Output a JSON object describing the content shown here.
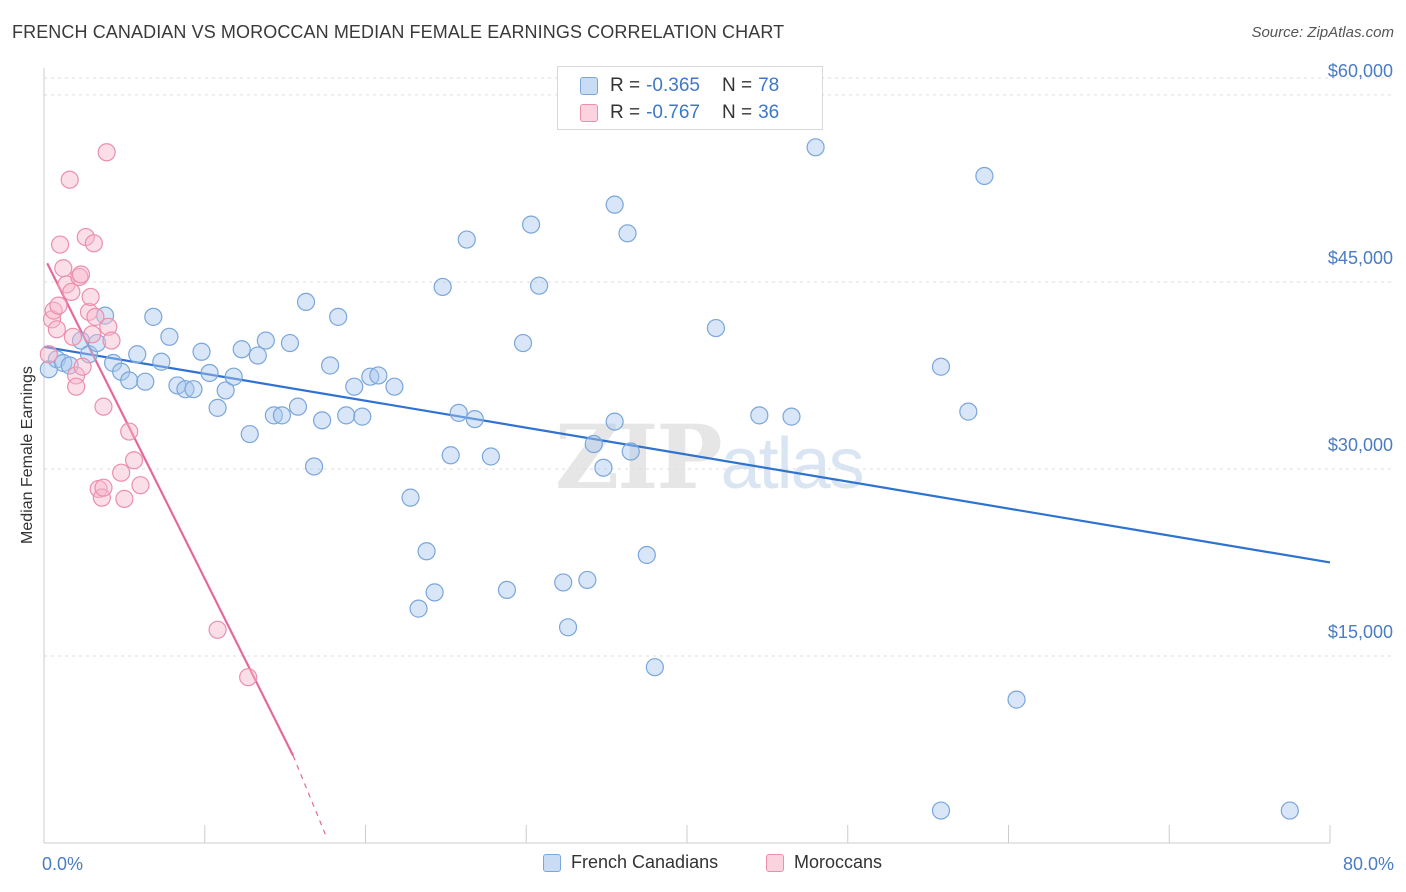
{
  "header": {
    "title": "FRENCH CANADIAN VS MOROCCAN MEDIAN FEMALE EARNINGS CORRELATION CHART",
    "source": "Source: ZipAtlas.com"
  },
  "watermark": {
    "zip": "ZIP",
    "atlas": "atlas"
  },
  "legend": {
    "rows": [
      {
        "r_label": "R =",
        "r_value": "-0.365",
        "n_label": "N =",
        "n_value": "78",
        "color": "#a9c8ee"
      },
      {
        "r_label": "R =",
        "r_value": "-0.767",
        "n_label": "N =",
        "n_value": "36",
        "color": "#f6b8cb"
      }
    ]
  },
  "bottom_legend": {
    "series1": "French Canadians",
    "series2": "Moroccans"
  },
  "colors": {
    "blue_fill": "#a9c8ee",
    "blue_stroke": "#7aa6dc",
    "blue_line": "#2f72cf",
    "pink_fill": "#f6b8cb",
    "pink_stroke": "#eb8fac",
    "pink_line": "#e5699a",
    "grid": "#dddddd",
    "tick_text": "#4a7cc4"
  },
  "chart_data": {
    "type": "scatter",
    "title": "FRENCH CANADIAN VS MOROCCAN MEDIAN FEMALE EARNINGS CORRELATION CHART",
    "xlabel": "",
    "ylabel": "Median Female Earnings",
    "xlim": [
      0,
      80
    ],
    "ylim": [
      0,
      62000
    ],
    "x_tick_labels": [
      "0.0%",
      "80.0%"
    ],
    "y_ticks": [
      15000,
      30000,
      45000,
      60000
    ],
    "y_tick_labels": [
      "$15,000",
      "$30,000",
      "$45,000",
      "$60,000"
    ],
    "grid": true,
    "legend_position": "top-center",
    "series": [
      {
        "name": "French Canadians",
        "color": "#a9c8ee",
        "trend": {
          "x": [
            0,
            80
          ],
          "y": [
            39800,
            22500
          ]
        },
        "points": [
          [
            0.3,
            38000
          ],
          [
            0.8,
            38800
          ],
          [
            1.2,
            38500
          ],
          [
            1.6,
            38300
          ],
          [
            2.3,
            40300
          ],
          [
            2.8,
            39200
          ],
          [
            3.3,
            40100
          ],
          [
            3.8,
            42300
          ],
          [
            4.3,
            38500
          ],
          [
            4.8,
            37800
          ],
          [
            5.3,
            37100
          ],
          [
            5.8,
            39200
          ],
          [
            6.3,
            37000
          ],
          [
            6.8,
            42200
          ],
          [
            7.3,
            38600
          ],
          [
            7.8,
            40600
          ],
          [
            8.3,
            36700
          ],
          [
            8.8,
            36400
          ],
          [
            9.3,
            36400
          ],
          [
            9.8,
            39400
          ],
          [
            10.3,
            37700
          ],
          [
            10.8,
            34900
          ],
          [
            11.3,
            36300
          ],
          [
            11.8,
            37400
          ],
          [
            12.3,
            39600
          ],
          [
            12.8,
            32800
          ],
          [
            13.3,
            39100
          ],
          [
            13.8,
            40300
          ],
          [
            14.3,
            34300
          ],
          [
            14.8,
            34300
          ],
          [
            15.3,
            40100
          ],
          [
            15.8,
            35000
          ],
          [
            16.3,
            43400
          ],
          [
            16.8,
            30200
          ],
          [
            17.3,
            33900
          ],
          [
            17.8,
            38300
          ],
          [
            18.3,
            42200
          ],
          [
            18.8,
            34300
          ],
          [
            19.3,
            36600
          ],
          [
            19.8,
            34200
          ],
          [
            20.3,
            37400
          ],
          [
            20.8,
            37500
          ],
          [
            21.8,
            36600
          ],
          [
            22.8,
            27700
          ],
          [
            23.3,
            18800
          ],
          [
            23.8,
            23400
          ],
          [
            24.3,
            20100
          ],
          [
            24.8,
            44600
          ],
          [
            25.3,
            31100
          ],
          [
            25.8,
            34500
          ],
          [
            26.3,
            48400
          ],
          [
            26.8,
            34000
          ],
          [
            27.8,
            31000
          ],
          [
            28.8,
            20300
          ],
          [
            29.8,
            40100
          ],
          [
            30.3,
            49600
          ],
          [
            30.8,
            44700
          ],
          [
            32.3,
            20900
          ],
          [
            32.6,
            17300
          ],
          [
            33.8,
            21100
          ],
          [
            34.2,
            32000
          ],
          [
            34.8,
            30100
          ],
          [
            35.5,
            51200
          ],
          [
            35.5,
            33800
          ],
          [
            36.3,
            48900
          ],
          [
            36.5,
            31400
          ],
          [
            37.5,
            23100
          ],
          [
            38.0,
            14100
          ],
          [
            41.8,
            41300
          ],
          [
            44.5,
            34300
          ],
          [
            46.5,
            34200
          ],
          [
            48.0,
            55800
          ],
          [
            55.8,
            2600
          ],
          [
            55.8,
            38200
          ],
          [
            57.5,
            34600
          ],
          [
            58.5,
            53500
          ],
          [
            60.5,
            11500
          ],
          [
            77.5,
            2600
          ]
        ]
      },
      {
        "name": "Moroccans",
        "color": "#f6b8cb",
        "trend": {
          "x": [
            0.2,
            15.5
          ],
          "y": [
            46500,
            7000
          ]
        },
        "trend_dashed": {
          "x": [
            15.5,
            17.5
          ],
          "y": [
            7000,
            700
          ]
        },
        "points": [
          [
            0.3,
            39200
          ],
          [
            0.5,
            42000
          ],
          [
            0.6,
            42700
          ],
          [
            0.8,
            41200
          ],
          [
            0.9,
            43100
          ],
          [
            1.0,
            48000
          ],
          [
            1.2,
            46100
          ],
          [
            1.4,
            44800
          ],
          [
            1.6,
            53200
          ],
          [
            1.7,
            44200
          ],
          [
            1.8,
            40600
          ],
          [
            2.0,
            37500
          ],
          [
            2.0,
            36600
          ],
          [
            2.2,
            45400
          ],
          [
            2.3,
            45600
          ],
          [
            2.4,
            38200
          ],
          [
            2.6,
            48600
          ],
          [
            2.8,
            42600
          ],
          [
            2.9,
            43800
          ],
          [
            3.1,
            48100
          ],
          [
            3.2,
            42200
          ],
          [
            3.4,
            28400
          ],
          [
            3.6,
            27700
          ],
          [
            3.7,
            28500
          ],
          [
            3.7,
            35000
          ],
          [
            3.9,
            55400
          ],
          [
            4.0,
            41400
          ],
          [
            4.2,
            40300
          ],
          [
            4.8,
            29700
          ],
          [
            5.0,
            27600
          ],
          [
            5.3,
            33000
          ],
          [
            5.6,
            30700
          ],
          [
            6.0,
            28700
          ],
          [
            10.8,
            17100
          ],
          [
            12.7,
            13300
          ],
          [
            3.0,
            40800
          ]
        ]
      }
    ]
  }
}
